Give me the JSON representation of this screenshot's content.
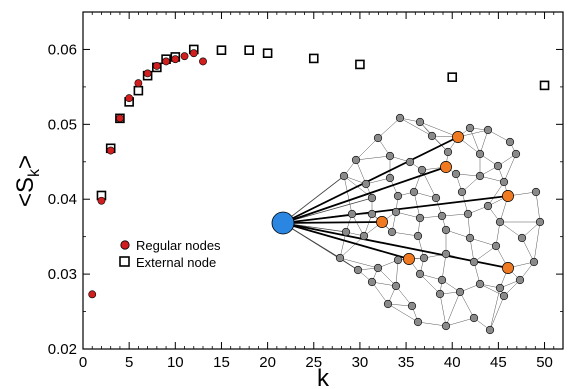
{
  "chart_data": {
    "type": "scatter",
    "title": "",
    "xlabel": "k",
    "ylabel": "<S",
    "ylabel_subscript": "k",
    "ylabel_suffix": ">",
    "xlim": [
      0,
      52
    ],
    "ylim": [
      0.02,
      0.065
    ],
    "xticks": [
      0,
      5,
      10,
      15,
      20,
      25,
      30,
      35,
      40,
      45,
      50
    ],
    "xtick_labels": [
      "0",
      "5",
      "10",
      "15",
      "20",
      "25",
      "30",
      "35",
      "40",
      "45",
      "50"
    ],
    "yticks": [
      0.02,
      0.03,
      0.04,
      0.05,
      0.06
    ],
    "ytick_labels": [
      "0.02",
      "0.03",
      "0.04",
      "0.05",
      "0.06"
    ],
    "grid": false,
    "legend_position": "lower-left",
    "series": [
      {
        "name": "Regular nodes",
        "marker": "filled-circle",
        "color": "#d11f1f",
        "x": [
          1,
          2,
          3,
          4,
          5,
          6,
          7,
          8,
          9,
          10,
          11,
          12,
          13
        ],
        "y": [
          0.0273,
          0.0398,
          0.0465,
          0.0508,
          0.0535,
          0.0555,
          0.0568,
          0.0578,
          0.0584,
          0.0587,
          0.0591,
          0.0595,
          0.0584
        ]
      },
      {
        "name": "External node",
        "marker": "open-square",
        "color": "#000000",
        "x": [
          2,
          3,
          4,
          5,
          6,
          7,
          8,
          9,
          10,
          12,
          15,
          18,
          20,
          25,
          30,
          40,
          50
        ],
        "y": [
          0.0405,
          0.0468,
          0.0508,
          0.053,
          0.0545,
          0.0565,
          0.0576,
          0.0587,
          0.059,
          0.06,
          0.0599,
          0.0599,
          0.0595,
          0.0588,
          0.058,
          0.0563,
          0.0552
        ]
      }
    ]
  },
  "inset": {
    "type": "network-diagram",
    "external_node_color": "#2a86e0",
    "highlighted_node_color": "#f07a22",
    "regular_node_color": "#8a8a8a"
  }
}
